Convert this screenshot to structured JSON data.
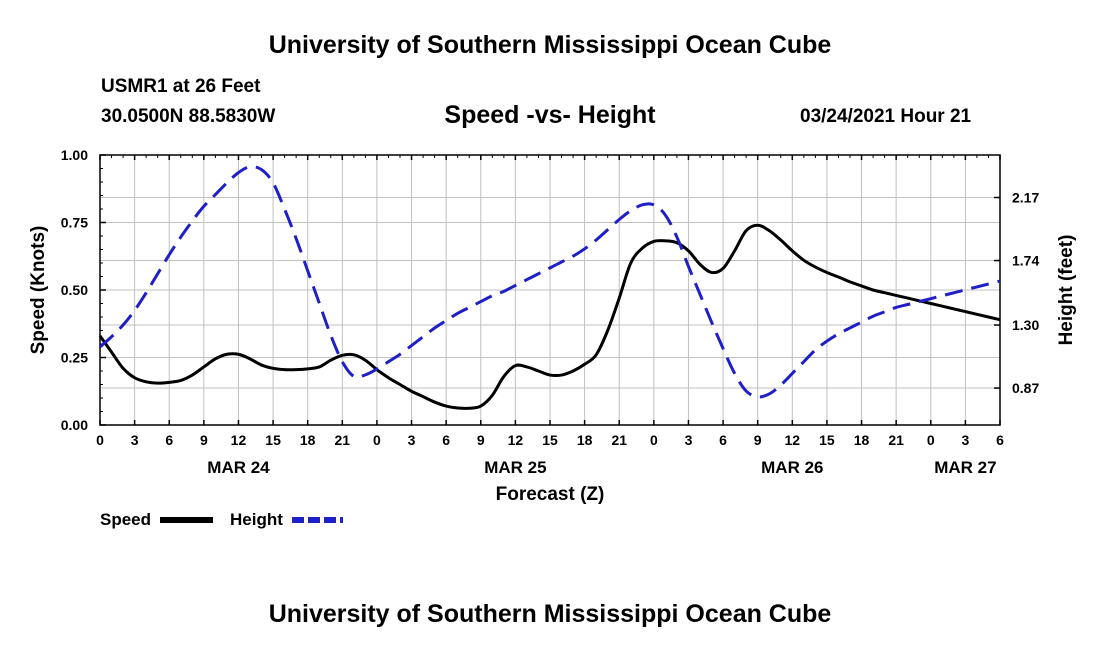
{
  "header": {
    "title": "University of Southern Mississippi Ocean Cube",
    "station": "USMR1 at 26 Feet",
    "coordinates": "30.0500N 88.5830W",
    "chart_title": "Speed -vs- Height",
    "datetime": "03/24/2021 Hour 21"
  },
  "footer": {
    "title": "University of Southern Mississippi Ocean Cube"
  },
  "chart_data": {
    "type": "line",
    "title": "Speed -vs- Height",
    "xlabel": "Forecast (Z)",
    "ylabel": "Speed (Knots)",
    "y2label": "Height (feet)",
    "xlim": [
      0,
      78
    ],
    "ylim": [
      0,
      1.0
    ],
    "y2lim": [
      0.618,
      2.46
    ],
    "x_tick_values": [
      0,
      3,
      6,
      9,
      12,
      15,
      18,
      21,
      24,
      27,
      30,
      33,
      36,
      39,
      42,
      45,
      48,
      51,
      54,
      57,
      60,
      63,
      66,
      69,
      72,
      75,
      78
    ],
    "x_tick_labels": [
      "0",
      "3",
      "6",
      "9",
      "12",
      "15",
      "18",
      "21",
      "0",
      "3",
      "6",
      "9",
      "12",
      "15",
      "18",
      "21",
      "0",
      "3",
      "6",
      "9",
      "12",
      "15",
      "18",
      "21",
      "0",
      "3",
      "6"
    ],
    "date_labels": [
      {
        "label": "MAR 24",
        "x": 12
      },
      {
        "label": "MAR 25",
        "x": 36
      },
      {
        "label": "MAR 26",
        "x": 60
      },
      {
        "label": "MAR 27",
        "x": 75
      }
    ],
    "y_ticks": [
      0.0,
      0.25,
      0.5,
      0.75,
      1.0
    ],
    "y_tick_labels": [
      "0.00",
      "0.25",
      "0.50",
      "0.75",
      "1.00"
    ],
    "y2_ticks": [
      0.87,
      1.3,
      1.74,
      2.17
    ],
    "y2_tick_labels": [
      "0.87",
      "1.30",
      "1.74",
      "2.17"
    ],
    "grid": true,
    "legend_position": "bottom-left",
    "series": [
      {
        "name": "Speed",
        "axis": "left",
        "color": "#000000",
        "style": "solid",
        "x": [
          0,
          1,
          2,
          3,
          4,
          5,
          6,
          7,
          8,
          9,
          10,
          11,
          12,
          13,
          14,
          15,
          16,
          17,
          18,
          19,
          20,
          21,
          22,
          23,
          24,
          25,
          26,
          27,
          28,
          29,
          30,
          31,
          32,
          33,
          34,
          35,
          36,
          37,
          38,
          39,
          40,
          41,
          42,
          43,
          44,
          45,
          46,
          47,
          48,
          49,
          50,
          51,
          52,
          53,
          54,
          55,
          56,
          57,
          58,
          59,
          60,
          61,
          62,
          63,
          64,
          65,
          66,
          67,
          68,
          69,
          70,
          71,
          72,
          73,
          74,
          75,
          76,
          77,
          78
        ],
        "values": [
          0.33,
          0.27,
          0.21,
          0.175,
          0.16,
          0.155,
          0.158,
          0.165,
          0.185,
          0.215,
          0.245,
          0.262,
          0.262,
          0.245,
          0.222,
          0.21,
          0.205,
          0.205,
          0.208,
          0.215,
          0.24,
          0.258,
          0.26,
          0.24,
          0.205,
          0.175,
          0.15,
          0.125,
          0.105,
          0.085,
          0.07,
          0.063,
          0.062,
          0.07,
          0.11,
          0.18,
          0.22,
          0.215,
          0.2,
          0.185,
          0.185,
          0.2,
          0.225,
          0.26,
          0.35,
          0.47,
          0.6,
          0.655,
          0.68,
          0.682,
          0.675,
          0.645,
          0.595,
          0.565,
          0.58,
          0.645,
          0.72,
          0.74,
          0.72,
          0.685,
          0.645,
          0.61,
          0.585,
          0.565,
          0.548,
          0.53,
          0.515,
          0.5,
          0.49,
          0.48,
          0.47,
          0.46,
          0.45,
          0.44,
          0.43,
          0.42,
          0.41,
          0.4,
          0.39
        ]
      },
      {
        "name": "Height",
        "axis": "right",
        "color": "#1f1fc8",
        "style": "dashed",
        "x": [
          0,
          1,
          2,
          3,
          4,
          5,
          6,
          7,
          8,
          9,
          10,
          11,
          12,
          13,
          14,
          15,
          16,
          17,
          18,
          19,
          20,
          21,
          22,
          23,
          24,
          25,
          26,
          27,
          28,
          29,
          30,
          31,
          32,
          33,
          34,
          35,
          36,
          37,
          38,
          39,
          40,
          41,
          42,
          43,
          44,
          45,
          46,
          47,
          48,
          49,
          50,
          51,
          52,
          53,
          54,
          55,
          56,
          57,
          58,
          59,
          60,
          61,
          62,
          63,
          64,
          65,
          66,
          67,
          68,
          69,
          70,
          71,
          72,
          73,
          74,
          75,
          76,
          77,
          78
        ],
        "values": [
          1.15,
          1.22,
          1.3,
          1.4,
          1.52,
          1.65,
          1.78,
          1.9,
          2.01,
          2.11,
          2.19,
          2.27,
          2.34,
          2.38,
          2.36,
          2.27,
          2.09,
          1.89,
          1.67,
          1.45,
          1.23,
          1.05,
          0.95,
          0.96,
          1.0,
          1.05,
          1.1,
          1.16,
          1.22,
          1.28,
          1.33,
          1.38,
          1.42,
          1.46,
          1.5,
          1.53,
          1.57,
          1.61,
          1.65,
          1.69,
          1.73,
          1.77,
          1.82,
          1.88,
          1.95,
          2.02,
          2.08,
          2.12,
          2.12,
          2.05,
          1.9,
          1.7,
          1.51,
          1.32,
          1.14,
          0.97,
          0.85,
          0.81,
          0.83,
          0.89,
          0.97,
          1.05,
          1.13,
          1.19,
          1.24,
          1.28,
          1.32,
          1.36,
          1.39,
          1.42,
          1.44,
          1.46,
          1.48,
          1.5,
          1.52,
          1.54,
          1.56,
          1.58,
          1.6
        ]
      }
    ],
    "legend": [
      {
        "name": "Speed"
      },
      {
        "name": "Height"
      }
    ]
  }
}
